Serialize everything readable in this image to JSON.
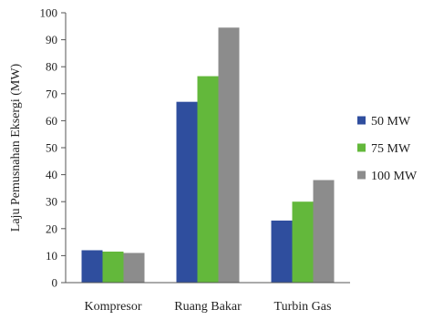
{
  "chart_data": {
    "type": "bar",
    "title": "",
    "xlabel": "",
    "ylabel": "Laju Pemusnahan Eksergi (MW)",
    "ylim": [
      0,
      100
    ],
    "yticks": [
      0,
      10,
      20,
      30,
      40,
      50,
      60,
      70,
      80,
      90,
      100
    ],
    "categories": [
      "Kompresor",
      "Ruang Bakar",
      "Turbin Gas"
    ],
    "series": [
      {
        "name": "50 MW",
        "color": "#2f4e9e",
        "values": [
          12,
          67,
          23
        ]
      },
      {
        "name": "75 MW",
        "color": "#63b83b",
        "values": [
          11.5,
          76.5,
          30
        ]
      },
      {
        "name": "100 MW",
        "color": "#8c8c8c",
        "values": [
          11,
          94.5,
          38
        ]
      }
    ],
    "legend_position": "right",
    "grid": false
  }
}
